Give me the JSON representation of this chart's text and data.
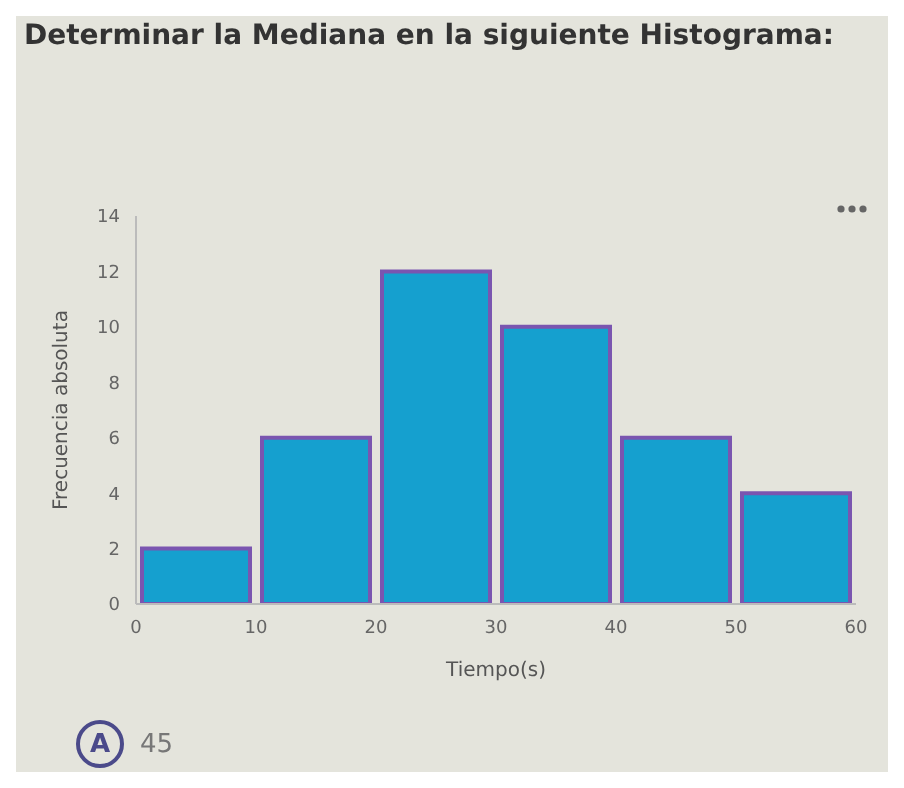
{
  "chart_data": {
    "type": "histogram",
    "title": "Determinar la Mediana en la siguiente Histograma:",
    "xlabel": "Tiempo(s)",
    "ylabel": "Frecuencia absoluta",
    "bins": [
      0,
      10,
      20,
      30,
      40,
      50,
      60
    ],
    "values": [
      2,
      6,
      12,
      10,
      6,
      4
    ],
    "color": "#15a0cf",
    "xlim": [
      0,
      60
    ],
    "xticks": [
      0,
      10,
      20,
      30,
      40,
      50,
      60
    ],
    "ylim": [
      0,
      14
    ],
    "yticks": [
      0,
      2,
      4,
      6,
      8,
      10,
      12,
      14
    ],
    "annotations": [
      "A",
      "45"
    ]
  }
}
